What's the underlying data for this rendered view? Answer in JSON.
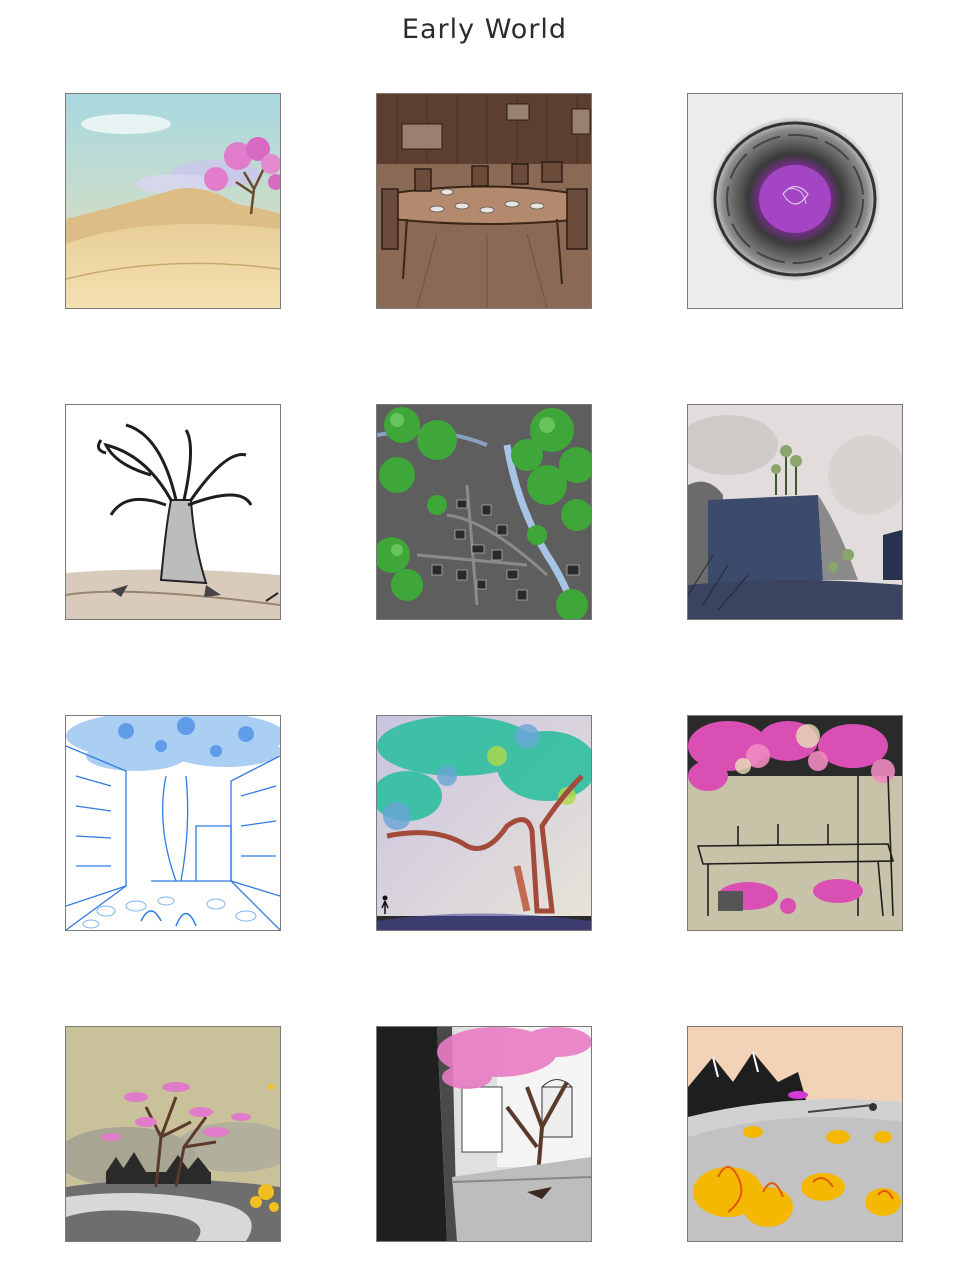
{
  "page": {
    "title": "Early World"
  },
  "gallery": {
    "items": [
      {
        "subject": "desert-dunes-pink-tree",
        "colors": [
          "#f2d9a5",
          "#d9c4e6",
          "#e07cc9"
        ]
      },
      {
        "subject": "wooden-dining-hall",
        "colors": [
          "#8a6a55",
          "#5a4236",
          "#e8e3de"
        ]
      },
      {
        "subject": "purple-vortex-portal",
        "colors": [
          "#e6e6e6",
          "#555555",
          "#b03fc9"
        ]
      },
      {
        "subject": "ink-tree-stump-sketch",
        "colors": [
          "#ffffff",
          "#222222",
          "#c9b8a5"
        ]
      },
      {
        "subject": "village-map-topdown",
        "colors": [
          "#5c5c5c",
          "#3fa63a",
          "#a7c3e6"
        ]
      },
      {
        "subject": "cliff-with-trees",
        "colors": [
          "#d8d3d0",
          "#3c4a6b",
          "#8aa56b"
        ]
      },
      {
        "subject": "blue-line-street-tree",
        "colors": [
          "#ffffff",
          "#2f7be0",
          "#9cc7f2"
        ]
      },
      {
        "subject": "teal-canopy-tree-figure",
        "colors": [
          "#2fbfa0",
          "#a44a3a",
          "#d8d4e8"
        ]
      },
      {
        "subject": "pink-blossom-table",
        "colors": [
          "#d94fb3",
          "#efe8d0",
          "#2a2a2a"
        ]
      },
      {
        "subject": "pink-tree-winding-road",
        "colors": [
          "#c8c19a",
          "#e07cc9",
          "#f0c020"
        ]
      },
      {
        "subject": "pink-tree-dark-street",
        "colors": [
          "#1f1f1f",
          "#e87cc4",
          "#bdbdbd"
        ]
      },
      {
        "subject": "fiery-flowers-mountains",
        "colors": [
          "#f2d3b8",
          "#f5b800",
          "#e05a10"
        ]
      }
    ]
  }
}
